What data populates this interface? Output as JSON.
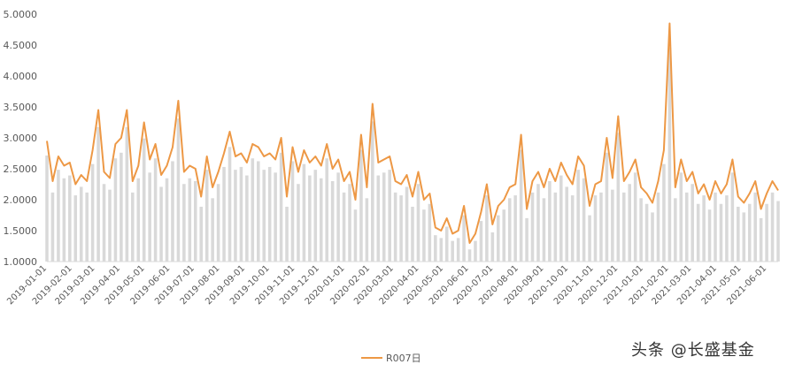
{
  "chart_data": {
    "type": "line",
    "x_date_start": "2019-01-01",
    "x_date_end": "2021-06-15",
    "ylim": [
      1.0,
      5.0
    ],
    "yticks": [
      "1.0000",
      "1.5000",
      "2.0000",
      "2.5000",
      "3.0000",
      "3.5000",
      "4.0000",
      "4.5000",
      "5.0000"
    ],
    "xticks": [
      "2019-01-01",
      "2019-02-01",
      "2019-03-01",
      "2019-04-01",
      "2019-05-01",
      "2019-06-01",
      "2019-07-01",
      "2019-08-01",
      "2019-09-01",
      "2019-10-01",
      "2019-11-01",
      "2019-12-01",
      "2020-01-01",
      "2020-02-01",
      "2020-03-01",
      "2020-04-01",
      "2020-05-01",
      "2020-06-01",
      "2020-07-01",
      "2020-08-01",
      "2020-09-01",
      "2020-10-01",
      "2020-11-01",
      "2020-12-01",
      "2021-01-01",
      "2021-02-01",
      "2021-03-01",
      "2021-04-01",
      "2021-05-01",
      "2021-06-01"
    ],
    "legend": {
      "position": "bottom"
    },
    "colors": {
      "line": "#ED9845",
      "bars": "#D9D9D9",
      "axis": "#D9D9D9"
    },
    "series": [
      {
        "name": "R007日",
        "x": [
          "2019-01-01",
          "2019-01-08",
          "2019-01-15",
          "2019-01-22",
          "2019-01-29",
          "2019-02-05",
          "2019-02-12",
          "2019-02-19",
          "2019-02-26",
          "2019-03-05",
          "2019-03-12",
          "2019-03-19",
          "2019-03-26",
          "2019-04-02",
          "2019-04-09",
          "2019-04-16",
          "2019-04-23",
          "2019-04-30",
          "2019-05-07",
          "2019-05-14",
          "2019-05-21",
          "2019-05-28",
          "2019-06-04",
          "2019-06-11",
          "2019-06-18",
          "2019-06-25",
          "2019-07-02",
          "2019-07-09",
          "2019-07-16",
          "2019-07-23",
          "2019-07-30",
          "2019-08-06",
          "2019-08-13",
          "2019-08-20",
          "2019-08-27",
          "2019-09-03",
          "2019-09-10",
          "2019-09-17",
          "2019-09-24",
          "2019-10-01",
          "2019-10-08",
          "2019-10-15",
          "2019-10-22",
          "2019-10-29",
          "2019-11-05",
          "2019-11-12",
          "2019-11-19",
          "2019-11-26",
          "2019-12-03",
          "2019-12-10",
          "2019-12-17",
          "2019-12-24",
          "2019-12-31",
          "2020-01-07",
          "2020-01-14",
          "2020-01-21",
          "2020-01-28",
          "2020-02-04",
          "2020-02-11",
          "2020-02-18",
          "2020-02-25",
          "2020-03-03",
          "2020-03-10",
          "2020-03-17",
          "2020-03-24",
          "2020-03-31",
          "2020-04-07",
          "2020-04-14",
          "2020-04-21",
          "2020-04-28",
          "2020-05-05",
          "2020-05-12",
          "2020-05-19",
          "2020-05-26",
          "2020-06-02",
          "2020-06-09",
          "2020-06-16",
          "2020-06-23",
          "2020-06-30",
          "2020-07-07",
          "2020-07-14",
          "2020-07-21",
          "2020-07-28",
          "2020-08-04",
          "2020-08-11",
          "2020-08-18",
          "2020-08-25",
          "2020-09-01",
          "2020-09-08",
          "2020-09-15",
          "2020-09-22",
          "2020-09-29",
          "2020-10-06",
          "2020-10-13",
          "2020-10-20",
          "2020-10-27",
          "2020-11-03",
          "2020-11-10",
          "2020-11-17",
          "2020-11-24",
          "2020-12-01",
          "2020-12-08",
          "2020-12-15",
          "2020-12-22",
          "2020-12-29",
          "2021-01-05",
          "2021-01-12",
          "2021-01-19",
          "2021-01-26",
          "2021-02-02",
          "2021-02-09",
          "2021-02-16",
          "2021-02-23",
          "2021-03-02",
          "2021-03-09",
          "2021-03-16",
          "2021-03-23",
          "2021-03-30",
          "2021-04-06",
          "2021-04-13",
          "2021-04-20",
          "2021-04-27",
          "2021-05-04",
          "2021-05-11",
          "2021-05-18",
          "2021-05-25",
          "2021-06-01",
          "2021-06-08",
          "2021-06-15"
        ],
        "values": [
          2.95,
          2.3,
          2.7,
          2.55,
          2.6,
          2.25,
          2.4,
          2.3,
          2.8,
          3.45,
          2.45,
          2.35,
          2.9,
          3.0,
          3.45,
          2.3,
          2.55,
          3.25,
          2.65,
          2.9,
          2.4,
          2.55,
          2.85,
          3.6,
          2.45,
          2.55,
          2.5,
          2.05,
          2.7,
          2.2,
          2.45,
          2.75,
          3.1,
          2.7,
          2.75,
          2.6,
          2.9,
          2.85,
          2.7,
          2.75,
          2.65,
          3.0,
          2.05,
          2.85,
          2.45,
          2.8,
          2.6,
          2.7,
          2.55,
          2.9,
          2.5,
          2.65,
          2.3,
          2.45,
          2.0,
          3.05,
          2.2,
          3.55,
          2.6,
          2.65,
          2.7,
          2.3,
          2.25,
          2.4,
          2.05,
          2.45,
          2.0,
          2.1,
          1.55,
          1.5,
          1.7,
          1.45,
          1.5,
          1.9,
          1.3,
          1.45,
          1.8,
          2.25,
          1.6,
          1.9,
          2.0,
          2.2,
          2.25,
          3.05,
          1.85,
          2.3,
          2.45,
          2.2,
          2.5,
          2.3,
          2.6,
          2.4,
          2.25,
          2.7,
          2.55,
          1.9,
          2.25,
          2.3,
          3.0,
          2.35,
          3.35,
          2.3,
          2.45,
          2.65,
          2.2,
          2.1,
          1.95,
          2.3,
          2.8,
          4.85,
          2.2,
          2.65,
          2.3,
          2.45,
          2.1,
          2.25,
          2.0,
          2.3,
          2.1,
          2.25,
          2.65,
          2.05,
          1.95,
          2.1,
          2.3,
          1.85,
          2.1,
          2.3,
          2.15
        ]
      }
    ]
  },
  "watermark": {
    "text": "头条 @长盛基金"
  }
}
